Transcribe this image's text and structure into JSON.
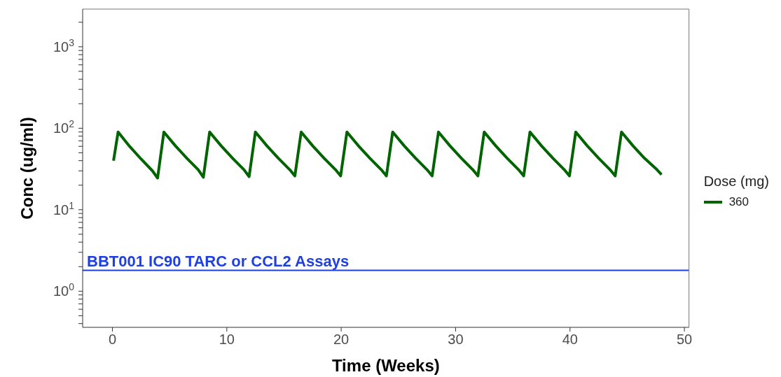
{
  "chart_data": {
    "type": "line",
    "xlabel": "Time (Weeks)",
    "ylabel": "Conc (ug/ml)",
    "legend_title": "Dose (mg)",
    "legend": "right",
    "log": "y",
    "grid": false,
    "marker": "none",
    "line_style": "solid",
    "xlim": [
      -2.6,
      50.4
    ],
    "xticks": [
      0,
      10,
      20,
      30,
      40,
      50
    ],
    "ylim": [
      0.36,
      2900
    ],
    "yticks": [
      {
        "value": 0.4,
        "label": null
      },
      {
        "value": 0.5,
        "label": null
      },
      {
        "value": 0.6,
        "label": null
      },
      {
        "value": 0.7,
        "label": null
      },
      {
        "value": 0.8,
        "label": null
      },
      {
        "value": 0.9,
        "label": null
      },
      {
        "value": 1,
        "label": "10$^{0}$"
      },
      {
        "value": 2,
        "label": null
      },
      {
        "value": 3,
        "label": null
      },
      {
        "value": 4,
        "label": null
      },
      {
        "value": 5,
        "label": null
      },
      {
        "value": 6,
        "label": null
      },
      {
        "value": 7,
        "label": null
      },
      {
        "value": 8,
        "label": null
      },
      {
        "value": 9,
        "label": null
      },
      {
        "value": 10,
        "label": "10$^{1}$"
      },
      {
        "value": 20,
        "label": null
      },
      {
        "value": 30,
        "label": null
      },
      {
        "value": 40,
        "label": null
      },
      {
        "value": 50,
        "label": null
      },
      {
        "value": 60,
        "label": null
      },
      {
        "value": 70,
        "label": null
      },
      {
        "value": 80,
        "label": null
      },
      {
        "value": 90,
        "label": null
      },
      {
        "value": 100,
        "label": "10$^{2}$"
      },
      {
        "value": 200,
        "label": null
      },
      {
        "value": 300,
        "label": null
      },
      {
        "value": 400,
        "label": null
      },
      {
        "value": 500,
        "label": null
      },
      {
        "value": 600,
        "label": null
      },
      {
        "value": 700,
        "label": null
      },
      {
        "value": 800,
        "label": null
      },
      {
        "value": 900,
        "label": null
      },
      {
        "value": 1000,
        "label": "10$^{3}$"
      },
      {
        "value": 2000,
        "label": null
      }
    ],
    "ref_lines": [
      {
        "axis": "y",
        "value": 1.8,
        "label": "BBT001 IC90 TARC or CCL2 Assays",
        "color": "#1f3fe0"
      }
    ],
    "x": [
      0.1,
      0.5,
      1.5,
      2.5,
      3.5,
      3.95,
      4.5,
      5.5,
      6.5,
      7.5,
      7.95,
      8.5,
      9.5,
      10.5,
      11.5,
      11.95,
      12.5,
      13.5,
      14.5,
      15.5,
      15.95,
      16.5,
      17.5,
      18.5,
      19.5,
      19.95,
      20.5,
      21.5,
      22.5,
      23.5,
      23.95,
      24.5,
      25.5,
      26.5,
      27.5,
      27.95,
      28.5,
      29.5,
      30.5,
      31.5,
      31.95,
      32.5,
      33.5,
      34.5,
      35.5,
      35.95,
      36.5,
      37.5,
      38.5,
      39.5,
      39.95,
      40.5,
      41.5,
      42.5,
      43.5,
      43.95,
      44.5,
      45.5,
      46.5,
      47.5,
      48
    ],
    "series": [
      {
        "name": "360",
        "color": "#006400",
        "values": [
          40,
          90,
          60,
          42,
          30,
          24.5,
          90,
          61,
          43,
          31,
          25,
          90,
          61,
          43,
          31,
          25.5,
          90,
          61,
          43,
          31,
          26,
          90,
          61,
          43,
          31,
          26,
          90,
          61,
          43,
          31,
          26,
          90,
          61,
          43,
          31,
          26,
          90,
          61,
          43,
          31,
          26,
          90,
          61,
          43,
          31,
          26,
          90,
          61,
          43,
          31,
          26,
          90,
          61,
          43,
          31,
          26,
          90,
          61,
          43,
          32,
          27
        ]
      }
    ]
  }
}
